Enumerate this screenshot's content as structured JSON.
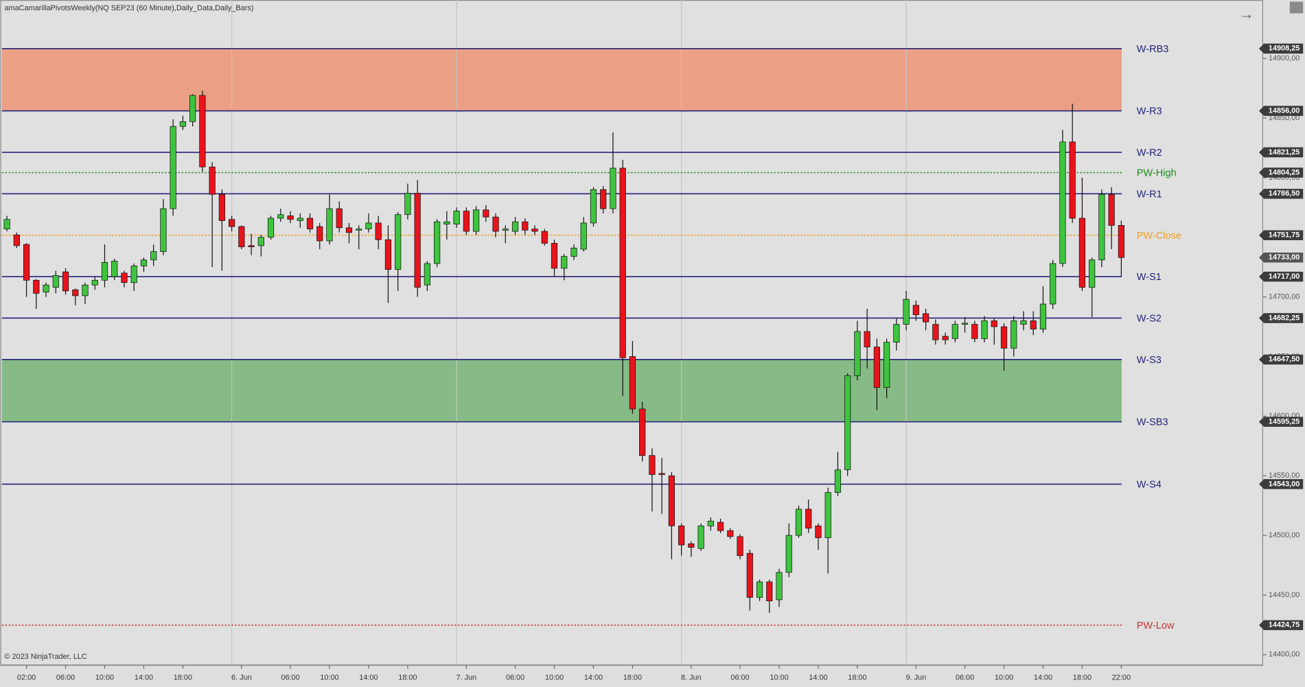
{
  "chart_data": {
    "type": "candlestick",
    "title": "amaCamarillaPivotsWeekly(NQ SEP23 (60 Minute),Daily_Data,Daily_Bars)",
    "footer": "© 2023 NinjaTrader, LLC",
    "categories": [
      null,
      null,
      "02:00",
      null,
      null,
      null,
      "06:00",
      null,
      null,
      null,
      "10:00",
      null,
      null,
      null,
      "14:00",
      null,
      null,
      null,
      "18:00",
      null,
      null,
      null,
      null,
      null,
      "6. Jun",
      null,
      null,
      null,
      null,
      "06:00",
      null,
      null,
      null,
      "10:00",
      null,
      null,
      null,
      "14:00",
      null,
      null,
      null,
      "18:00",
      null,
      null,
      null,
      null,
      null,
      "7. Jun",
      null,
      null,
      null,
      null,
      "06:00",
      null,
      null,
      null,
      "10:00",
      null,
      null,
      null,
      "14:00",
      null,
      null,
      null,
      "18:00",
      null,
      null,
      null,
      null,
      null,
      "8. Jun",
      null,
      null,
      null,
      null,
      "06:00",
      null,
      null,
      null,
      "10:00",
      null,
      null,
      null,
      "14:00",
      null,
      null,
      null,
      "18:00",
      null,
      null,
      null,
      null,
      null,
      "9. Jun",
      null,
      null,
      null,
      null,
      "06:00",
      null,
      null,
      null,
      "10:00",
      null,
      null,
      null,
      "14:00",
      null,
      null,
      null,
      "18:00",
      null,
      null,
      null,
      "22:00"
    ],
    "open": [
      14757,
      14752,
      14744,
      14714,
      14704,
      14708,
      14721,
      14706,
      14701,
      14710,
      14714,
      14717,
      14720,
      14712,
      14726,
      14731,
      14738,
      14774,
      14843,
      14847,
      14869,
      14809,
      14786,
      14765,
      14759,
      14743,
      14743,
      14750,
      14766,
      14768,
      14764,
      14766,
      14759,
      14747,
      14774,
      14758,
      14756,
      14757,
      14762,
      14748,
      14723,
      14769,
      14787,
      14710,
      14728,
      14761,
      14761,
      14772,
      14755,
      14773,
      14767,
      14756,
      14755,
      14763,
      14757,
      14755,
      14745,
      14724,
      14734,
      14740,
      14762,
      14790,
      14774,
      14808,
      14650,
      14606,
      14567,
      14552,
      14550,
      14508,
      14493,
      14489,
      14508,
      14511,
      14504,
      14499,
      14485,
      14448,
      14461,
      14446,
      14469,
      14500,
      14522,
      14508,
      14498,
      14536,
      14555,
      14634,
      14671,
      14658,
      14624,
      14662,
      14677,
      14693,
      14686,
      14677,
      14667,
      14665,
      14677,
      14677,
      14665,
      14680,
      14675,
      14657,
      14677,
      14680,
      14673,
      14694,
      14728,
      14830,
      14766,
      14708,
      14731,
      14786,
      14760
    ],
    "high": [
      14768,
      14754,
      14745,
      14715,
      14712,
      14722,
      14724,
      14707,
      14712,
      14717,
      14744,
      14732,
      14722,
      14728,
      14733,
      14744,
      14782,
      14849,
      14852,
      14870,
      14873,
      14813,
      14790,
      14768,
      14760,
      14753,
      14752,
      14768,
      14774,
      14772,
      14770,
      14770,
      14762,
      14786,
      14780,
      14762,
      14760,
      14770,
      14768,
      14760,
      14771,
      14795,
      14798,
      14730,
      14765,
      14772,
      14775,
      14775,
      14776,
      14777,
      14770,
      14760,
      14767,
      14766,
      14760,
      14757,
      14748,
      14736,
      14744,
      14767,
      14792,
      14793,
      14838,
      14815,
      14663,
      14612,
      14573,
      14565,
      14553,
      14510,
      14495,
      14510,
      14515,
      14514,
      14506,
      14501,
      14488,
      14463,
      14463,
      14472,
      14510,
      14525,
      14530,
      14510,
      14540,
      14570,
      14636,
      14680,
      14690,
      14665,
      14665,
      14682,
      14705,
      14697,
      14690,
      14681,
      14670,
      14680,
      14683,
      14680,
      14684,
      14682,
      14678,
      14684,
      14688,
      14688,
      14709,
      14731,
      14840,
      14862,
      14800,
      14733,
      14790,
      14792,
      14764
    ],
    "low": [
      14755,
      14741,
      14700,
      14690,
      14700,
      14703,
      14702,
      14693,
      14694,
      14706,
      14708,
      14714,
      14708,
      14705,
      14721,
      14726,
      14735,
      14768,
      14840,
      14843,
      14805,
      14725,
      14722,
      14755,
      14740,
      14735,
      14734,
      14748,
      14763,
      14762,
      14758,
      14754,
      14740,
      14744,
      14754,
      14745,
      14740,
      14754,
      14740,
      14695,
      14705,
      14765,
      14700,
      14705,
      14725,
      14748,
      14758,
      14752,
      14752,
      14763,
      14750,
      14745,
      14752,
      14752,
      14752,
      14743,
      14717,
      14714,
      14731,
      14738,
      14759,
      14770,
      14770,
      14617,
      14602,
      14562,
      14520,
      14518,
      14480,
      14483,
      14482,
      14487,
      14504,
      14502,
      14497,
      14480,
      14437,
      14445,
      14435,
      14440,
      14465,
      14498,
      14502,
      14488,
      14468,
      14533,
      14550,
      14630,
      14640,
      14605,
      14615,
      14655,
      14672,
      14680,
      14672,
      14660,
      14660,
      14662,
      14670,
      14662,
      14662,
      14660,
      14638,
      14650,
      14672,
      14668,
      14670,
      14690,
      14725,
      14762,
      14705,
      14683,
      14725,
      14740,
      14717
    ],
    "close": [
      14765,
      14743,
      14714,
      14703,
      14710,
      14718,
      14705,
      14701,
      14710,
      14714,
      14729,
      14730,
      14712,
      14726,
      14731,
      14738,
      14774,
      14843,
      14847,
      14869,
      14809,
      14786,
      14764,
      14759,
      14742,
      14742,
      14750,
      14766,
      14769,
      14765,
      14766,
      14757,
      14747,
      14774,
      14758,
      14754,
      14757,
      14762,
      14748,
      14723,
      14769,
      14787,
      14708,
      14728,
      14763,
      14763,
      14772,
      14755,
      14773,
      14767,
      14755,
      14757,
      14763,
      14756,
      14755,
      14745,
      14724,
      14734,
      14741,
      14762,
      14790,
      14774,
      14808,
      14649,
      14606,
      14567,
      14551,
      14551,
      14508,
      14492,
      14490,
      14508,
      14512,
      14504,
      14499,
      14483,
      14448,
      14461,
      14445,
      14469,
      14500,
      14522,
      14506,
      14498,
      14536,
      14555,
      14634,
      14671,
      14658,
      14624,
      14662,
      14677,
      14698,
      14685,
      14679,
      14664,
      14664,
      14677,
      14678,
      14665,
      14680,
      14675,
      14657,
      14680,
      14680,
      14673,
      14694,
      14728,
      14830,
      14766,
      14708,
      14731,
      14786,
      14760,
      14733
    ],
    "up_color": "#3ec43e",
    "down_color": "#e8141c",
    "ylim": [
      14391,
      14949
    ],
    "yticks": [
      {
        "value": 14400,
        "label": "14400,00"
      },
      {
        "value": 14450,
        "label": "14450,00"
      },
      {
        "value": 14500,
        "label": "14500,00"
      },
      {
        "value": 14550,
        "label": "14550,00"
      },
      {
        "value": 14600,
        "label": "14600,00"
      },
      {
        "value": 14650,
        "label": "14650,00"
      },
      {
        "value": 14700,
        "label": "14700,00"
      },
      {
        "value": 14750,
        "label": "14750,00"
      },
      {
        "value": 14800,
        "label": "14800,00"
      },
      {
        "value": 14850,
        "label": "14850,00"
      },
      {
        "value": 14900,
        "label": "14900,00"
      }
    ],
    "levels": [
      {
        "name": "W-RB3",
        "value": 14908.25,
        "value_label": "14908,25",
        "color": "#24247a",
        "style": "solid",
        "zone_fill": "#eba085"
      },
      {
        "name": "W-R3",
        "value": 14856,
        "value_label": "14856,00",
        "color": "#24247a",
        "style": "solid"
      },
      {
        "name": "W-R2",
        "value": 14821.25,
        "value_label": "14821,25",
        "color": "#24247a",
        "style": "solid"
      },
      {
        "name": "PW-High",
        "value": 14804.25,
        "value_label": "14804,25",
        "color": "#1e8a1e",
        "style": "dotted"
      },
      {
        "name": "W-R1",
        "value": 14786.5,
        "value_label": "14786,50",
        "color": "#24247a",
        "style": "solid"
      },
      {
        "name": "PW-Close",
        "value": 14751.75,
        "value_label": "14751,75",
        "color": "#f0a020",
        "style": "dotted"
      },
      {
        "name": "W-S1",
        "value": 14717,
        "value_label": "14717,00",
        "color": "#24247a",
        "style": "solid"
      },
      {
        "name": "W-S2",
        "value": 14682.25,
        "value_label": "14682,25",
        "color": "#24247a",
        "style": "solid"
      },
      {
        "name": "W-S3",
        "value": 14647.5,
        "value_label": "14647,50",
        "color": "#24247a",
        "style": "solid",
        "zone_fill": "#86ba86"
      },
      {
        "name": "W-SB3",
        "value": 14595.25,
        "value_label": "14595,25",
        "color": "#24247a",
        "style": "solid"
      },
      {
        "name": "W-S4",
        "value": 14543,
        "value_label": "14543,00",
        "color": "#24247a",
        "style": "solid"
      },
      {
        "name": "PW-Low",
        "value": 14424.75,
        "value_label": "14424,75",
        "color": "#c83232",
        "style": "dotted"
      }
    ],
    "last_price": {
      "value": 14733,
      "label": "14733,00"
    }
  }
}
